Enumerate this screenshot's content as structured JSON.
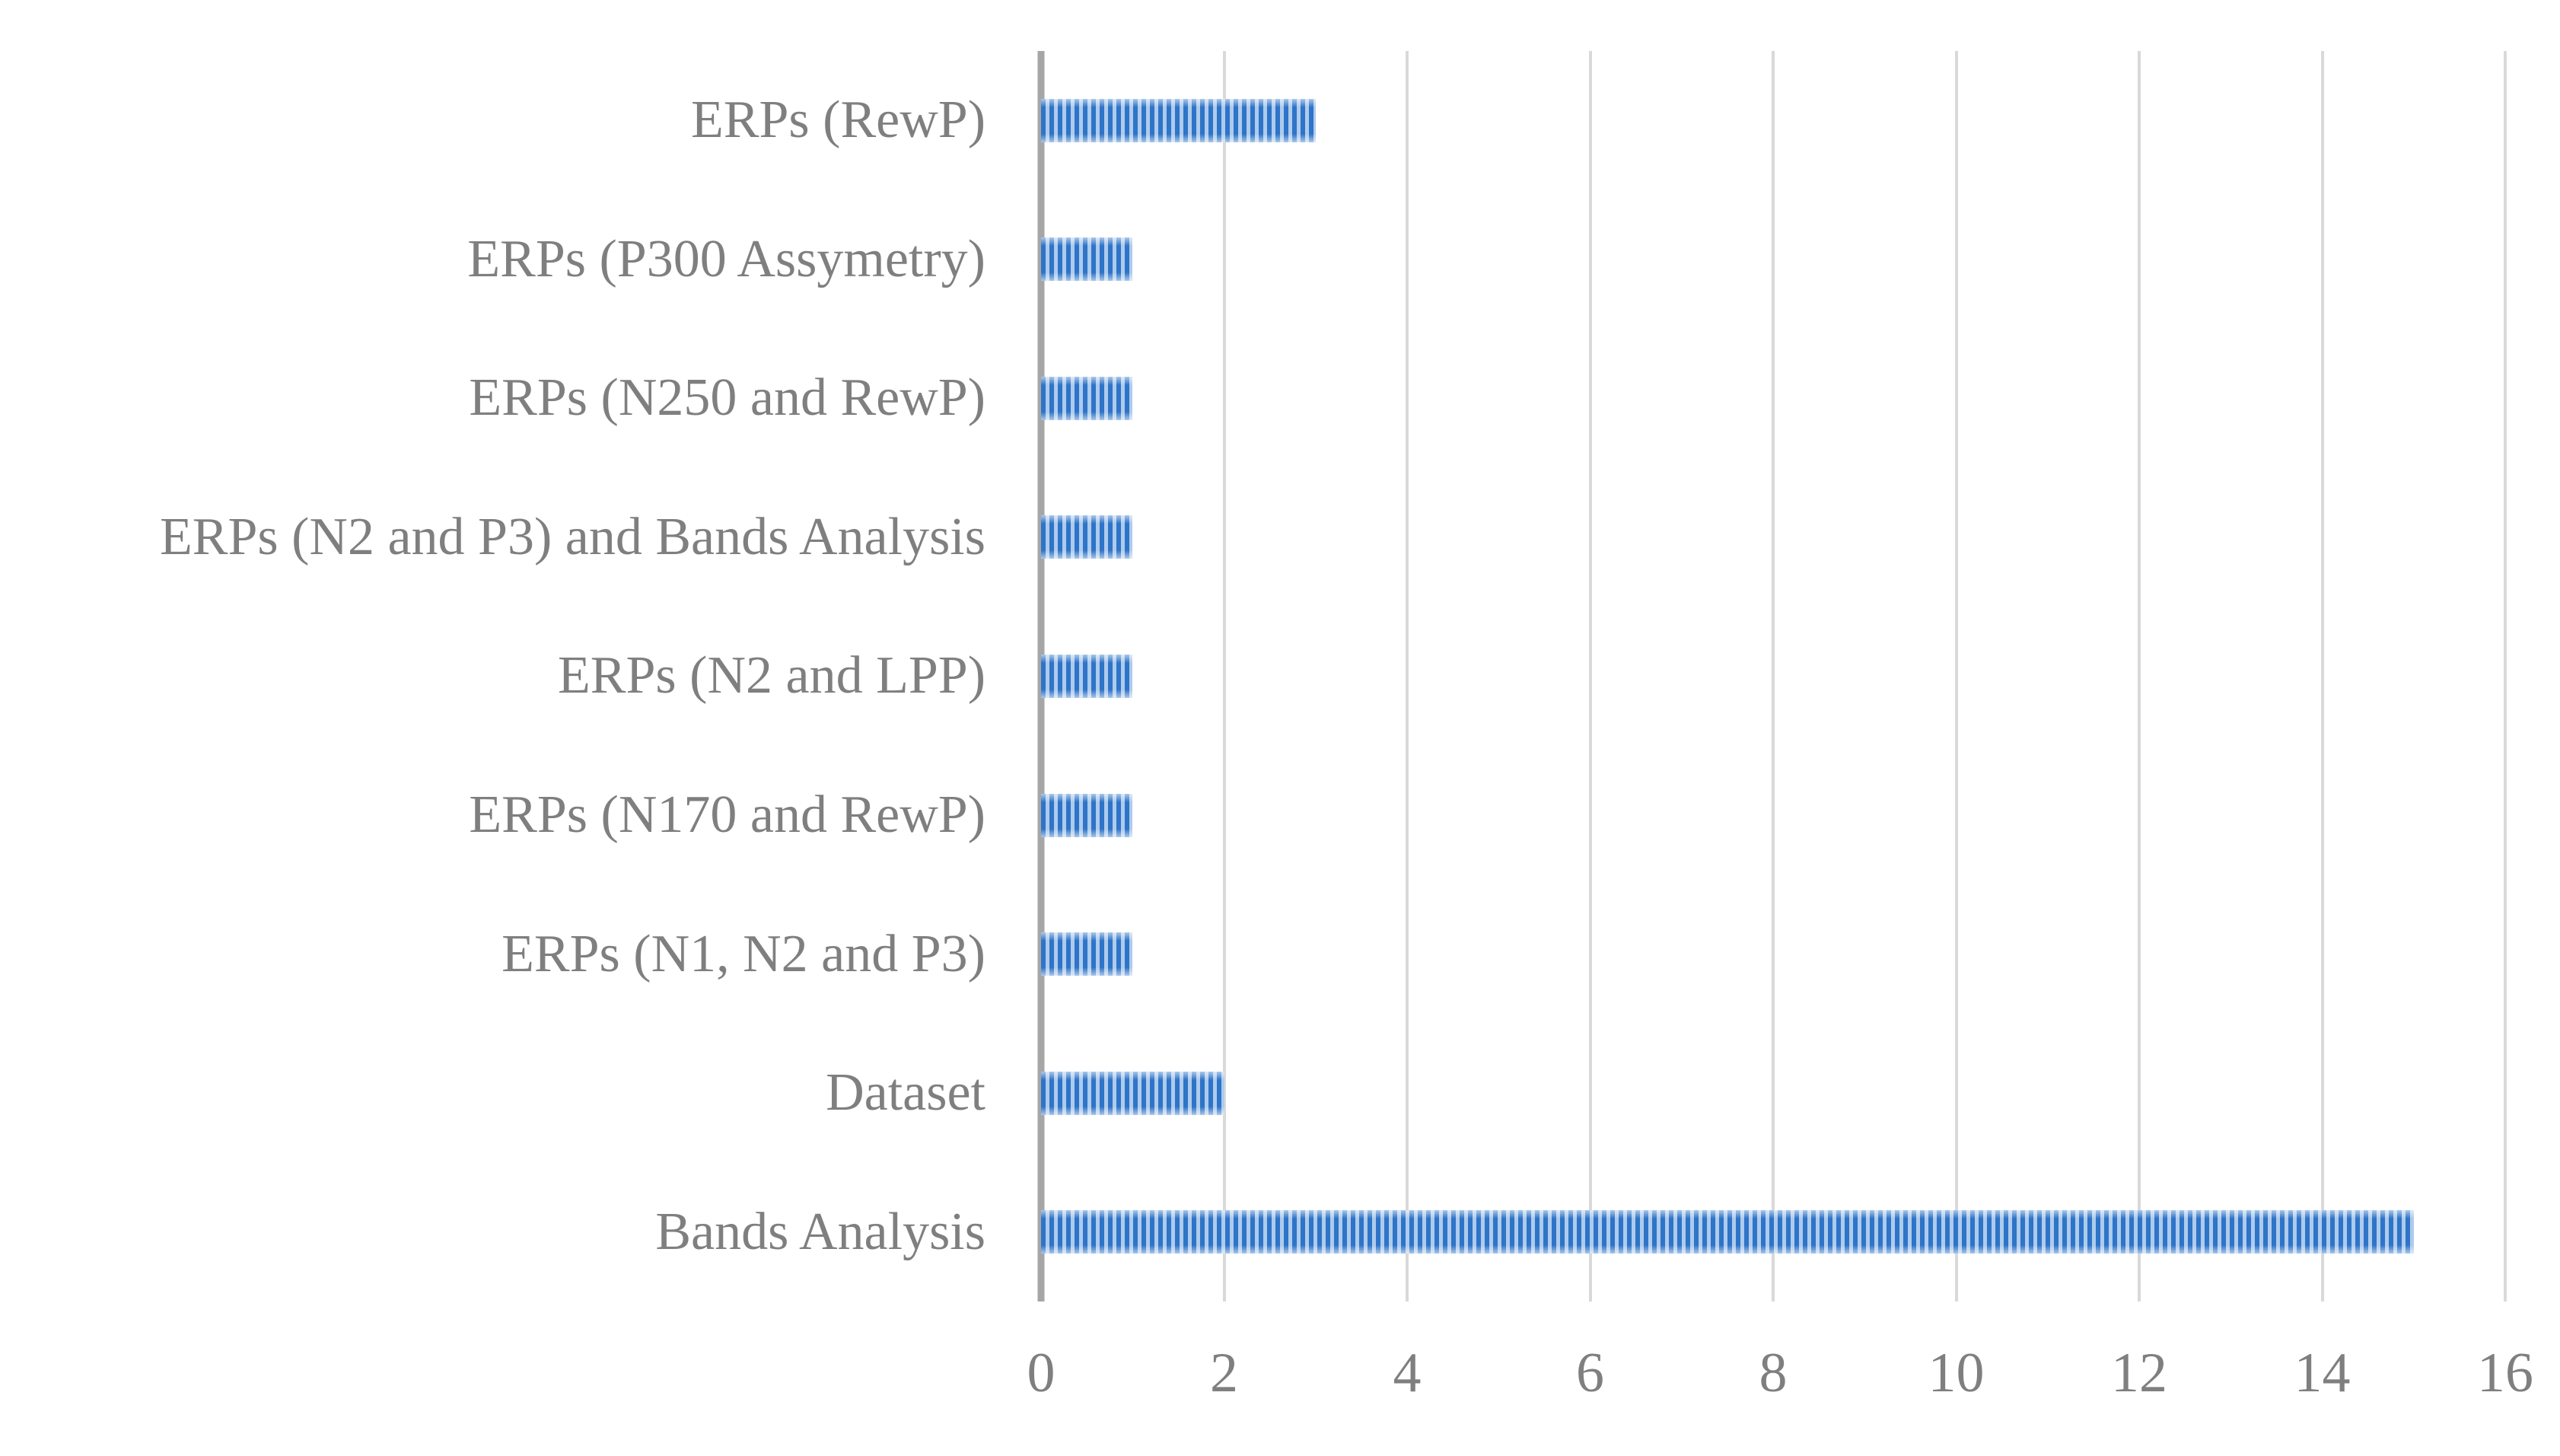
{
  "chart_data": {
    "type": "bar",
    "orientation": "horizontal",
    "title": "",
    "xlabel": "",
    "ylabel": "",
    "categories": [
      "ERPs (RewP)",
      "ERPs (P300 Assymetry)",
      "ERPs (N250 and RewP)",
      "ERPs (N2 and P3) and Bands Analysis",
      "ERPs (N2 and LPP)",
      "ERPs (N170 and RewP)",
      "ERPs (N1, N2 and P3)",
      "Dataset",
      "Bands Analysis"
    ],
    "values": [
      3,
      1,
      1,
      1,
      1,
      1,
      1,
      2,
      15
    ],
    "xlim": [
      0,
      16
    ],
    "xticks": [
      0,
      2,
      4,
      6,
      8,
      10,
      12,
      14,
      16
    ],
    "grid": true,
    "legend": null,
    "colors": {
      "background": "#FFFFFF",
      "bar_stripe_dark": "#2E74C8",
      "bar_stripe_light": "#AECBEC",
      "gridline": "#D9D9D9",
      "axis_line": "#A6A6A6",
      "label_text": "#7F7F7F"
    }
  }
}
